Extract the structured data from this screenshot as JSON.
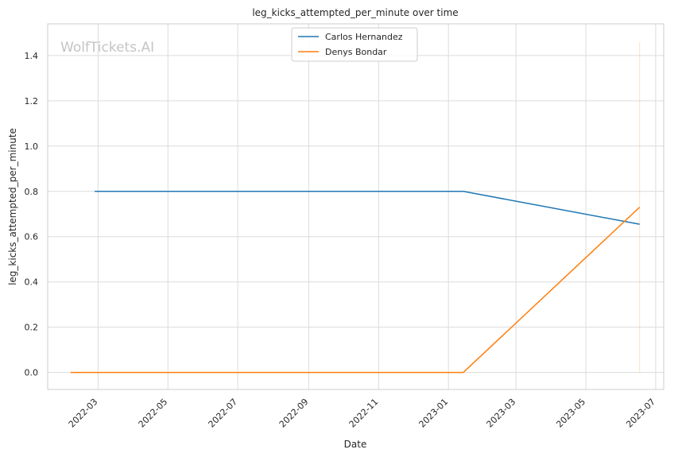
{
  "chart_data": {
    "type": "line",
    "title": "leg_kicks_attempted_per_minute over time",
    "xlabel": "Date",
    "ylabel": "leg_kicks_attempted_per_minute",
    "watermark": "WolfTickets.AI",
    "x_ticks": [
      "2022-03",
      "2022-05",
      "2022-07",
      "2022-09",
      "2022-11",
      "2023-01",
      "2023-03",
      "2023-05",
      "2023-07"
    ],
    "y_ticks": [
      "0.0",
      "0.2",
      "0.4",
      "0.6",
      "0.8",
      "1.0",
      "1.2",
      "1.4"
    ],
    "xlim": [
      "2022-01-16",
      "2023-07-08"
    ],
    "ylim": [
      -0.075,
      1.54
    ],
    "grid": true,
    "legend_position": "top-center",
    "series": [
      {
        "name": "Carlos Hernandez",
        "color": "#1f77b4",
        "points": [
          {
            "x": "2022-02-26",
            "y": 0.8
          },
          {
            "x": "2023-01-14",
            "y": 0.8
          },
          {
            "x": "2023-06-17",
            "y": 0.655
          }
        ]
      },
      {
        "name": "Denys Bondar",
        "color": "#ff7f0e",
        "points": [
          {
            "x": "2022-02-05",
            "y": 0.0
          },
          {
            "x": "2023-01-14",
            "y": 0.0
          },
          {
            "x": "2023-06-17",
            "y": 0.73
          }
        ]
      }
    ],
    "reference_line": {
      "x": "2023-06-17",
      "y_range": [
        0.0,
        1.46
      ],
      "color": "#ff7f0e"
    }
  }
}
